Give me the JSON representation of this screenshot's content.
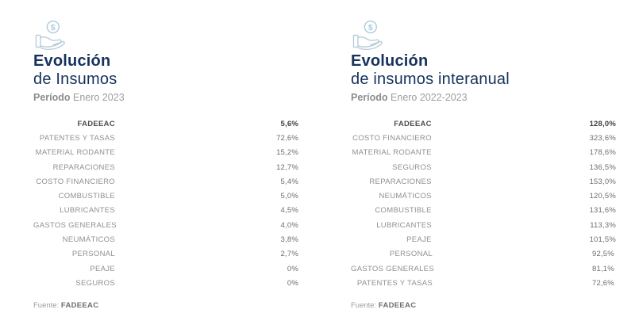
{
  "theme": {
    "background": "#ffffff",
    "title_color": "#16325c",
    "label_color": "#909090",
    "value_color": "#6e6e6e",
    "highlight_text_color": "#404040",
    "bar_color": "#d9d9d9",
    "highlight_bar_color": "#8ecdf0",
    "highlight_gradient_from": "#dce2e7",
    "icon_stroke": "#a9cbdf"
  },
  "chart_data": [
    {
      "type": "bar",
      "orientation": "horizontal",
      "icon": "hand-coin-icon",
      "title_line1": "Evolución",
      "title_line2": "de Insumos",
      "period_label": "Período",
      "period_value": "Enero 2023",
      "source_label": "Fuente:",
      "source_value": "FADEEAC",
      "xlim": [
        0,
        72.6
      ],
      "value_align": "right",
      "highlight_index": 0,
      "highlight_gradient": false,
      "categories": [
        "FADEEAC",
        "PATENTES Y TASAS",
        "MATERIAL RODANTE",
        "REPARACIONES",
        "COSTO FINANCIERO",
        "COMBUSTIBLE",
        "LUBRICANTES",
        "GASTOS GENERALES",
        "NEUMÁTICOS",
        "PERSONAL",
        "PEAJE",
        "SEGUROS"
      ],
      "values": [
        5.6,
        72.6,
        15.2,
        12.7,
        5.4,
        5.0,
        4.5,
        4.0,
        3.8,
        2.7,
        0,
        0
      ],
      "value_labels": [
        "5,6%",
        "72,6%",
        "15,2%",
        "12,7%",
        "5,4%",
        "5,0%",
        "4,5%",
        "4,0%",
        "3,8%",
        "2,7%",
        "0%",
        "0%"
      ]
    },
    {
      "type": "bar",
      "orientation": "horizontal",
      "icon": "hand-coin-icon",
      "title_line1": "Evolución",
      "title_line2": "de insumos interanual",
      "period_label": "Período",
      "period_value": "Enero 2022-2023",
      "source_label": "Fuente:",
      "source_value": "FADEEAC",
      "xlim": [
        0,
        323.6
      ],
      "value_align": "left",
      "highlight_index": 0,
      "highlight_gradient": true,
      "categories": [
        "FADEEAC",
        "COSTO FINANCIERO",
        "MATERIAL RODANTE",
        "SEGUROS",
        "REPARACIONES",
        "NEUMÁTICOS",
        "COMBUSTIBLE",
        "LUBRICANTES",
        "PEAJE",
        "PERSONAL",
        "GASTOS GENERALES",
        "PATENTES Y TASAS"
      ],
      "values": [
        128.0,
        323.6,
        178.6,
        136.5,
        153.0,
        120.5,
        131.6,
        113.3,
        101.5,
        92.5,
        81.1,
        72.6
      ],
      "value_labels": [
        "128,0%",
        "323,6%",
        "178,6%",
        "136,5%",
        "153,0%",
        "120,5%",
        "131,6%",
        "113,3%",
        "101,5%",
        "92,5%",
        "81,1%",
        "72,6%"
      ]
    }
  ]
}
